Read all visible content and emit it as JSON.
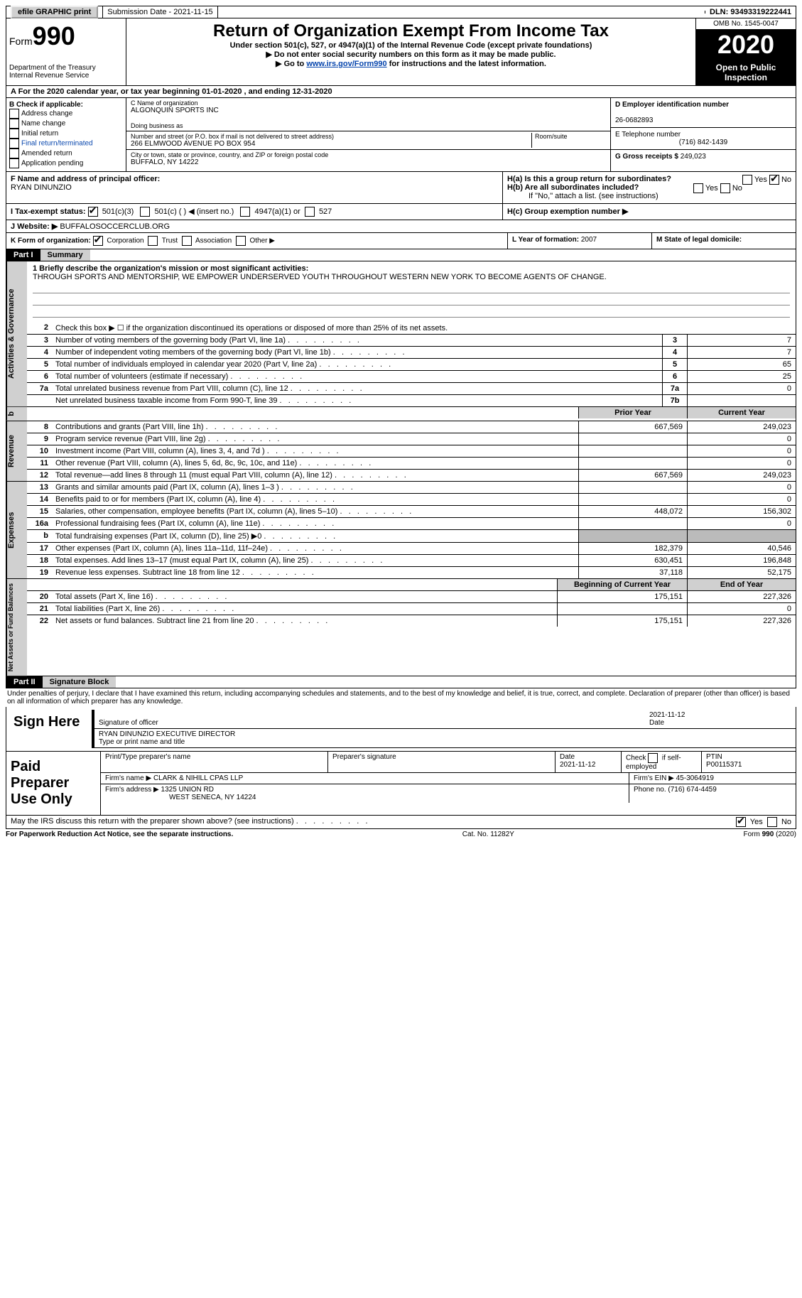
{
  "topbar": {
    "efile_label": "efile GRAPHIC print",
    "sub_date_label": "Submission Date - 2021-11-15",
    "dln_label": "DLN: 93493319222441"
  },
  "header": {
    "form_label": "Form",
    "form_num": "990",
    "dept": "Department of the Treasury\nInternal Revenue Service",
    "title": "Return of Organization Exempt From Income Tax",
    "sub1": "Under section 501(c), 527, or 4947(a)(1) of the Internal Revenue Code (except private foundations)",
    "sub2": "▶ Do not enter social security numbers on this form as it may be made public.",
    "sub3_pre": "▶ Go to ",
    "sub3_link": "www.irs.gov/Form990",
    "sub3_post": " for instructions and the latest information.",
    "omb": "OMB No. 1545-0047",
    "year": "2020",
    "open": "Open to Public Inspection"
  },
  "rowA": "A For the 2020 calendar year, or tax year beginning 01-01-2020   , and ending 12-31-2020",
  "boxB": {
    "label": "B Check if applicable:",
    "opts": [
      "Address change",
      "Name change",
      "Initial return",
      "Final return/terminated",
      "Amended return",
      "Application pending"
    ]
  },
  "boxC": {
    "name_lbl": "C Name of organization",
    "name": "ALGONQUIN SPORTS INC",
    "dba_lbl": "Doing business as",
    "addr_lbl": "Number and street (or P.O. box if mail is not delivered to street address)",
    "room_lbl": "Room/suite",
    "addr": "266 ELMWOOD AVENUE PO BOX 954",
    "city_lbl": "City or town, state or province, country, and ZIP or foreign postal code",
    "city": "BUFFALO, NY  14222"
  },
  "boxD": {
    "lbl": "D Employer identification number",
    "val": "26-0682893"
  },
  "boxE": {
    "lbl": "E Telephone number",
    "val": "(716) 842-1439"
  },
  "boxG": {
    "lbl": "G Gross receipts $",
    "val": "249,023"
  },
  "boxF": {
    "lbl": "F Name and address of principal officer:",
    "val": "RYAN DINUNZIO"
  },
  "boxH": {
    "a": "H(a)  Is this a group return for subordinates?",
    "b": "H(b)  Are all subordinates included?",
    "b2": "If \"No,\" attach a list. (see instructions)",
    "c": "H(c)  Group exemption number ▶",
    "yes": "Yes",
    "no": "No"
  },
  "boxI": {
    "lbl": "I   Tax-exempt status:",
    "o1": "501(c)(3)",
    "o2": "501(c) (  ) ◀ (insert no.)",
    "o3": "4947(a)(1) or",
    "o4": "527"
  },
  "boxJ": {
    "lbl": "J   Website: ▶ ",
    "val": "BUFFALOSOCCERCLUB.ORG"
  },
  "boxK": {
    "lbl": "K Form of organization:",
    "o1": "Corporation",
    "o2": "Trust",
    "o3": "Association",
    "o4": "Other ▶"
  },
  "boxL": {
    "lbl": "L Year of formation:",
    "val": "2007"
  },
  "boxM": {
    "lbl": "M State of legal domicile:",
    "val": ""
  },
  "part1": {
    "hdr": "Part I",
    "title": "Summary",
    "brief_lbl": "1   Briefly describe the organization's mission or most significant activities:",
    "brief": "THROUGH SPORTS AND MENTORSHIP, WE EMPOWER UNDERSERVED YOUTH THROUGHOUT WESTERN NEW YORK TO BECOME AGENTS OF CHANGE.",
    "line2": "Check this box ▶ ☐  if the organization discontinued its operations or disposed of more than 25% of its net assets."
  },
  "gov": {
    "tab": "Activities & Governance",
    "rows": [
      {
        "n": "3",
        "d": "Number of voting members of the governing body (Part VI, line 1a)",
        "k": "3",
        "v": "7"
      },
      {
        "n": "4",
        "d": "Number of independent voting members of the governing body (Part VI, line 1b)",
        "k": "4",
        "v": "7"
      },
      {
        "n": "5",
        "d": "Total number of individuals employed in calendar year 2020 (Part V, line 2a)",
        "k": "5",
        "v": "65"
      },
      {
        "n": "6",
        "d": "Total number of volunteers (estimate if necessary)",
        "k": "6",
        "v": "25"
      },
      {
        "n": "7a",
        "d": "Total unrelated business revenue from Part VIII, column (C), line 12",
        "k": "7a",
        "v": "0"
      },
      {
        "n": "",
        "d": "Net unrelated business taxable income from Form 990-T, line 39",
        "k": "7b",
        "v": ""
      }
    ]
  },
  "twocol_hdr": {
    "py": "Prior Year",
    "cy": "Current Year"
  },
  "rev": {
    "tab": "Revenue",
    "rows": [
      {
        "n": "8",
        "d": "Contributions and grants (Part VIII, line 1h)",
        "py": "667,569",
        "cy": "249,023"
      },
      {
        "n": "9",
        "d": "Program service revenue (Part VIII, line 2g)",
        "py": "",
        "cy": "0"
      },
      {
        "n": "10",
        "d": "Investment income (Part VIII, column (A), lines 3, 4, and 7d )",
        "py": "",
        "cy": "0"
      },
      {
        "n": "11",
        "d": "Other revenue (Part VIII, column (A), lines 5, 6d, 8c, 9c, 10c, and 11e)",
        "py": "",
        "cy": "0"
      },
      {
        "n": "12",
        "d": "Total revenue—add lines 8 through 11 (must equal Part VIII, column (A), line 12)",
        "py": "667,569",
        "cy": "249,023"
      }
    ]
  },
  "exp": {
    "tab": "Expenses",
    "rows": [
      {
        "n": "13",
        "d": "Grants and similar amounts paid (Part IX, column (A), lines 1–3 )",
        "py": "",
        "cy": "0"
      },
      {
        "n": "14",
        "d": "Benefits paid to or for members (Part IX, column (A), line 4)",
        "py": "",
        "cy": "0"
      },
      {
        "n": "15",
        "d": "Salaries, other compensation, employee benefits (Part IX, column (A), lines 5–10)",
        "py": "448,072",
        "cy": "156,302"
      },
      {
        "n": "16a",
        "d": "Professional fundraising fees (Part IX, column (A), line 11e)",
        "py": "",
        "cy": "0"
      },
      {
        "n": "b",
        "d": "Total fundraising expenses (Part IX, column (D), line 25) ▶0",
        "py": "g",
        "cy": "g"
      },
      {
        "n": "17",
        "d": "Other expenses (Part IX, column (A), lines 11a–11d, 11f–24e)",
        "py": "182,379",
        "cy": "40,546"
      },
      {
        "n": "18",
        "d": "Total expenses. Add lines 13–17 (must equal Part IX, column (A), line 25)",
        "py": "630,451",
        "cy": "196,848"
      },
      {
        "n": "19",
        "d": "Revenue less expenses. Subtract line 18 from line 12",
        "py": "37,118",
        "cy": "52,175"
      }
    ]
  },
  "net_hdr": {
    "by": "Beginning of Current Year",
    "ey": "End of Year"
  },
  "net": {
    "tab": "Net Assets or Fund Balances",
    "rows": [
      {
        "n": "20",
        "d": "Total assets (Part X, line 16)",
        "py": "175,151",
        "cy": "227,326"
      },
      {
        "n": "21",
        "d": "Total liabilities (Part X, line 26)",
        "py": "",
        "cy": "0"
      },
      {
        "n": "22",
        "d": "Net assets or fund balances. Subtract line 21 from line 20",
        "py": "175,151",
        "cy": "227,326"
      }
    ]
  },
  "part2": {
    "hdr": "Part II",
    "title": "Signature Block"
  },
  "penalties": "Under penalties of perjury, I declare that I have examined this return, including accompanying schedules and statements, and to the best of my knowledge and belief, it is true, correct, and complete. Declaration of preparer (other than officer) is based on all information of which preparer has any knowledge.",
  "sign": {
    "lab": "Sign Here",
    "sig_lbl": "Signature of officer",
    "date_lbl": "Date",
    "date": "2021-11-12",
    "name_lbl": "Type or print name and title",
    "name": "RYAN DINUNZIO  EXECUTIVE DIRECTOR"
  },
  "paid": {
    "lab": "Paid Preparer Use Only",
    "h1": "Print/Type preparer's name",
    "h2": "Preparer's signature",
    "h3": "Date",
    "h3v": "2021-11-12",
    "h4a": "Check",
    "h4b": "if self-employed",
    "h5": "PTIN",
    "h5v": "P00115371",
    "firm_lbl": "Firm's name   ▶",
    "firm": "CLARK & NIHILL CPAS LLP",
    "ein_lbl": "Firm's EIN ▶",
    "ein": "45-3064919",
    "addr_lbl": "Firm's address ▶",
    "addr1": "1325 UNION RD",
    "addr2": "WEST SENECA, NY  14224",
    "phone_lbl": "Phone no.",
    "phone": "(716) 674-4459"
  },
  "discuss": {
    "q": "May the IRS discuss this return with the preparer shown above? (see instructions)",
    "yes": "Yes",
    "no": "No"
  },
  "footer": {
    "l": "For Paperwork Reduction Act Notice, see the separate instructions.",
    "m": "Cat. No. 11282Y",
    "r": "Form 990 (2020)"
  }
}
